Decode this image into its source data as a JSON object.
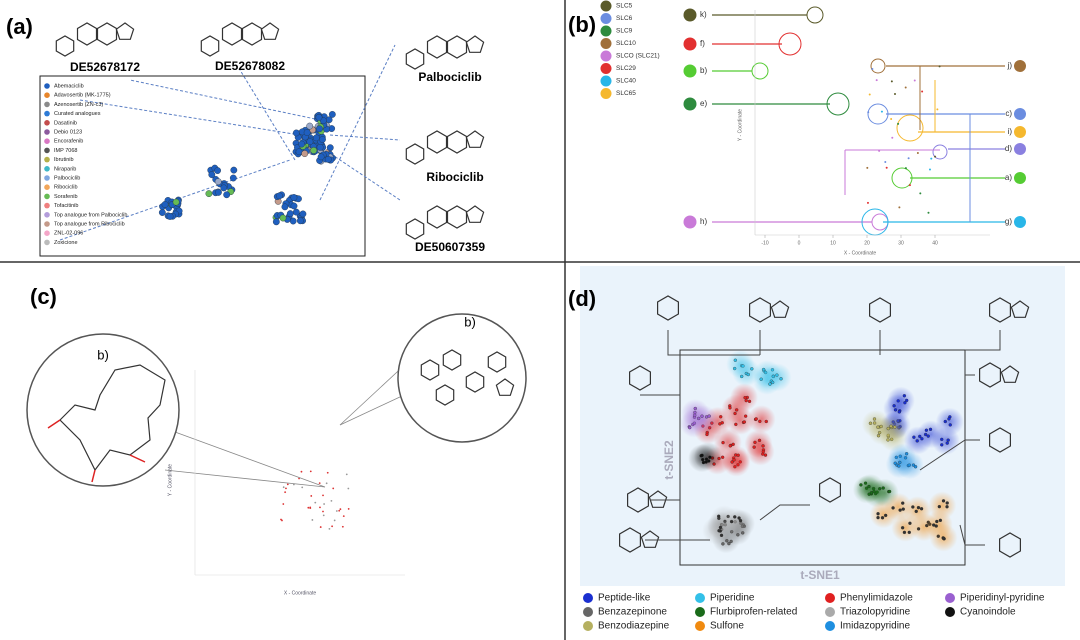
{
  "panels": [
    {
      "label": "(a)",
      "molecules": [
        "DE52678172",
        "DE52678082",
        "Palbociclib",
        "Ribociclib",
        "DE50607359"
      ],
      "legend": [
        {
          "name": "Abemaciclib",
          "color": "#1f5fbf"
        },
        {
          "name": "Adavosertib (MK-1775)",
          "color": "#e8862a"
        },
        {
          "name": "Azenosertib (ZN-c3)",
          "color": "#8a8a8a"
        },
        {
          "name": "Curated analogues",
          "color": "#2e7bd6"
        },
        {
          "name": "Dasatinib",
          "color": "#c44d4d"
        },
        {
          "name": "Debio 0123",
          "color": "#8c5a9e"
        },
        {
          "name": "Encorafenib",
          "color": "#d977c4"
        },
        {
          "name": "IMP 7068",
          "color": "#555555"
        },
        {
          "name": "Ibrutinib",
          "color": "#b5b04a"
        },
        {
          "name": "Niraparib",
          "color": "#3fb8c8"
        },
        {
          "name": "Palbociclib",
          "color": "#7fa7e0"
        },
        {
          "name": "Ribociclib",
          "color": "#f2a65a"
        },
        {
          "name": "Sorafenib",
          "color": "#66bb55"
        },
        {
          "name": "Tofacitinib",
          "color": "#f08080"
        },
        {
          "name": "Top analogue from Palbociclib",
          "color": "#b39ddb"
        },
        {
          "name": "Top analogue from Ribociclib",
          "color": "#c49a8a"
        },
        {
          "name": "ZNL-02-096",
          "color": "#f4a6c8"
        },
        {
          "name": "Zoxicione",
          "color": "#bbbbbb"
        }
      ]
    },
    {
      "label": "(b)",
      "legend": [
        {
          "name": "SLC5",
          "color": "#5a5a2a"
        },
        {
          "name": "SLC6",
          "color": "#6b8de0"
        },
        {
          "name": "SLC9",
          "color": "#2e8b3e"
        },
        {
          "name": "SLC10",
          "color": "#a0703a"
        },
        {
          "name": "SLCO (SLC21)",
          "color": "#c97ad8"
        },
        {
          "name": "SLC29",
          "color": "#e23030"
        },
        {
          "name": "SLC40",
          "color": "#29b6e8"
        },
        {
          "name": "SLC65",
          "color": "#f5b82e"
        }
      ],
      "left_labels": [
        {
          "text": "k)",
          "color": "#5a5a2a"
        },
        {
          "text": "f)",
          "color": "#e23030"
        },
        {
          "text": "b)",
          "color": "#55cc33"
        },
        {
          "text": "e)",
          "color": "#2e8b3e"
        },
        {
          "text": "h)",
          "color": "#c97ad8"
        }
      ],
      "right_labels": [
        {
          "text": "j)",
          "color": "#a0703a"
        },
        {
          "text": "c)",
          "color": "#6b8de0"
        },
        {
          "text": "i)",
          "color": "#f5b82e"
        },
        {
          "text": "d)",
          "color": "#8a80e0"
        },
        {
          "text": "a)",
          "color": "#55cc33"
        },
        {
          "text": "g)",
          "color": "#29b6e8"
        }
      ],
      "x_label": "X - Coordinate",
      "y_label": "Y - Coordinate",
      "xticks": [
        -10,
        0,
        10,
        20,
        30,
        40
      ]
    },
    {
      "label": "(c)",
      "zoom_labels": [
        "b)",
        "b)"
      ],
      "x_label": "X - Coordinate",
      "y_label": "Y - Coordinate"
    },
    {
      "label": "(d)",
      "x_label": "t-SNE1",
      "y_label": "t-SNE2",
      "legend": [
        {
          "name": "Peptide-like",
          "color": "#1a2fd0"
        },
        {
          "name": "Benzazepinone",
          "color": "#666666"
        },
        {
          "name": "Benzodiazepine",
          "color": "#b5b060"
        },
        {
          "name": "Piperidine",
          "color": "#33c0e8"
        },
        {
          "name": "Flurbiprofen-related",
          "color": "#1a6b1a"
        },
        {
          "name": "Sulfone",
          "color": "#f08a10"
        },
        {
          "name": "Phenylimidazole",
          "color": "#e02020"
        },
        {
          "name": "Triazolopyridine",
          "color": "#aaaaaa"
        },
        {
          "name": "Imidazopyridine",
          "color": "#1e8fe0"
        },
        {
          "name": "Piperidinyl-pyridine",
          "color": "#9a60d0"
        },
        {
          "name": "Cyanoindole",
          "color": "#111111"
        }
      ]
    }
  ]
}
